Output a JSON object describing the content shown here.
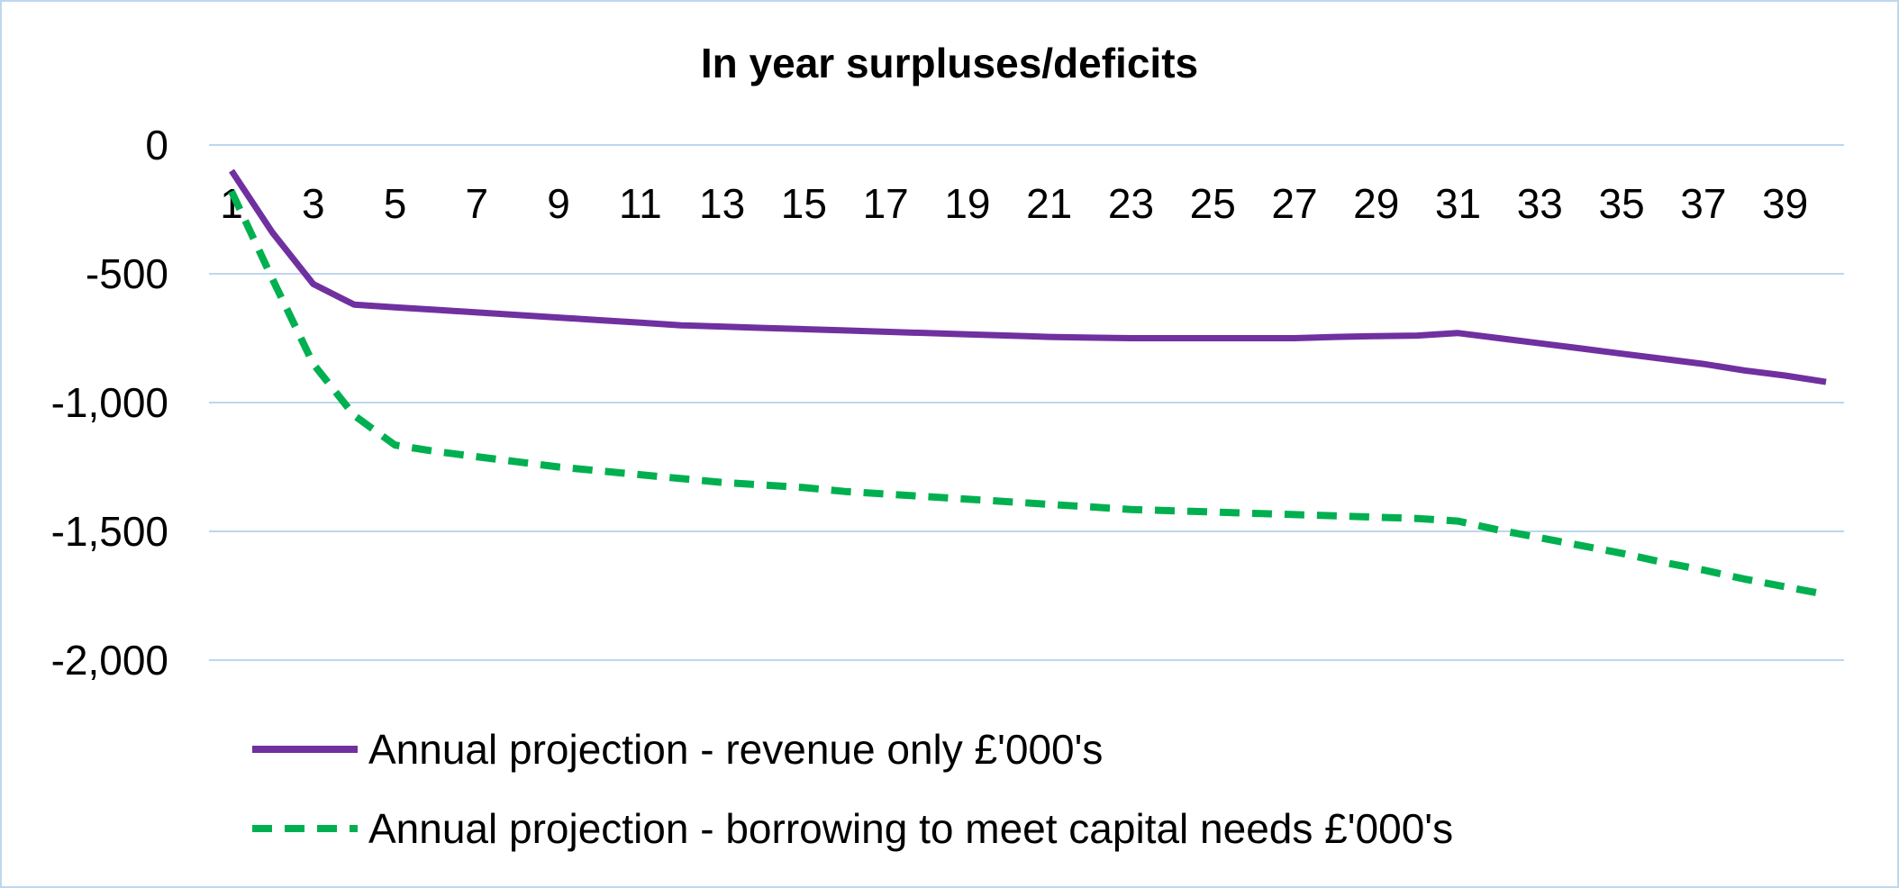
{
  "chart_data": {
    "type": "line",
    "title": "In year surpluses/deficits",
    "xlabel": "",
    "ylabel": "",
    "ylim": [
      -2000,
      0
    ],
    "yticks": [
      0,
      -500,
      -1000,
      -1500,
      -2000
    ],
    "ytick_labels": [
      "0",
      "-500",
      "-1,000",
      "-1,500",
      "-2,000"
    ],
    "x": [
      1,
      2,
      3,
      4,
      5,
      6,
      7,
      8,
      9,
      10,
      11,
      12,
      13,
      14,
      15,
      16,
      17,
      18,
      19,
      20,
      21,
      22,
      23,
      24,
      25,
      26,
      27,
      28,
      29,
      30,
      31,
      32,
      33,
      34,
      35,
      36,
      37,
      38,
      39,
      40
    ],
    "xtick_labels": [
      "1",
      "3",
      "5",
      "7",
      "9",
      "11",
      "13",
      "15",
      "17",
      "19",
      "21",
      "23",
      "25",
      "27",
      "29",
      "31",
      "33",
      "35",
      "37",
      "39"
    ],
    "grid": true,
    "legend_position": "bottom",
    "series": [
      {
        "name": "Annual projection - revenue only £'000's",
        "color": "#7030a0",
        "style": "solid",
        "values": [
          -100,
          -340,
          -540,
          -620,
          -630,
          -640,
          -650,
          -660,
          -670,
          -680,
          -690,
          -700,
          -705,
          -710,
          -715,
          -720,
          -725,
          -730,
          -735,
          -740,
          -745,
          -748,
          -750,
          -750,
          -750,
          -750,
          -750,
          -745,
          -742,
          -740,
          -730,
          -750,
          -770,
          -790,
          -810,
          -830,
          -850,
          -875,
          -895,
          -920
        ]
      },
      {
        "name": "Annual projection - borrowing to meet capital needs £'000's",
        "color": "#00b050",
        "style": "dashed",
        "values": [
          -180,
          -520,
          -850,
          -1050,
          -1165,
          -1190,
          -1210,
          -1230,
          -1250,
          -1265,
          -1280,
          -1295,
          -1310,
          -1320,
          -1330,
          -1345,
          -1355,
          -1365,
          -1375,
          -1385,
          -1395,
          -1405,
          -1415,
          -1420,
          -1425,
          -1430,
          -1435,
          -1440,
          -1445,
          -1450,
          -1460,
          -1495,
          -1525,
          -1555,
          -1585,
          -1620,
          -1650,
          -1685,
          -1715,
          -1745
        ]
      }
    ]
  }
}
